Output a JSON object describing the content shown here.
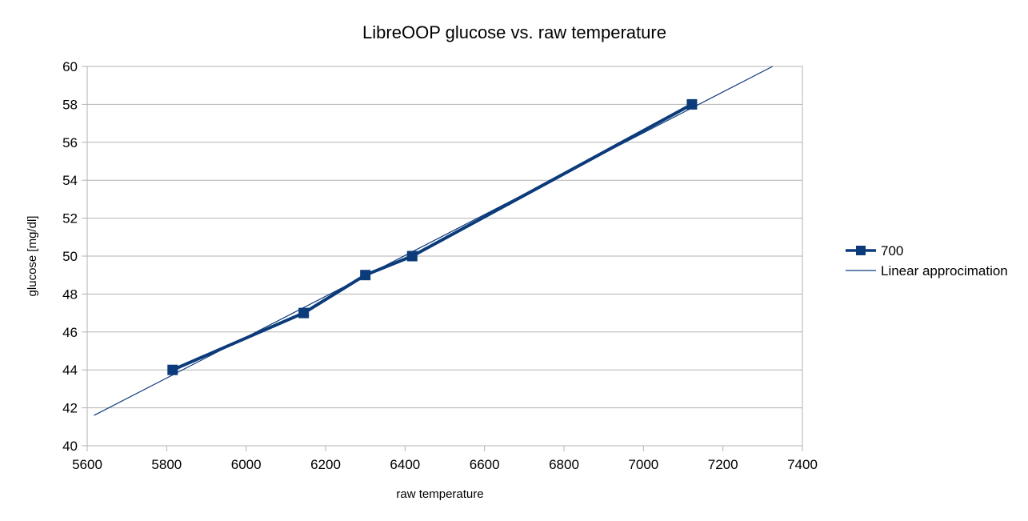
{
  "chart_data": {
    "type": "scatter",
    "title": "LibreOOP glucose vs. raw temperature",
    "xlabel": "raw temperature",
    "ylabel": "glucose [mg/dl]",
    "xlim": [
      5600,
      7400
    ],
    "ylim": [
      40,
      60
    ],
    "xticks": [
      "5600",
      "5800",
      "6000",
      "6200",
      "6400",
      "6600",
      "6800",
      "7000",
      "7200",
      "7400"
    ],
    "yticks": [
      "40",
      "42",
      "44",
      "46",
      "48",
      "50",
      "52",
      "54",
      "56",
      "58",
      "60"
    ],
    "grid": "horizontal",
    "legend_position": "right",
    "series": [
      {
        "name": "700",
        "x": [
          5815,
          6145,
          6300,
          6418,
          7122
        ],
        "y": [
          44,
          47,
          49,
          50,
          58
        ],
        "style": "line-with-square-markers",
        "color": "#0b3b7a"
      }
    ],
    "trendline": {
      "name": "Linear approcimation",
      "type": "linear",
      "points": [
        [
          5617,
          41.6
        ],
        [
          7325,
          60
        ]
      ],
      "color": "#0b3b7a"
    }
  }
}
